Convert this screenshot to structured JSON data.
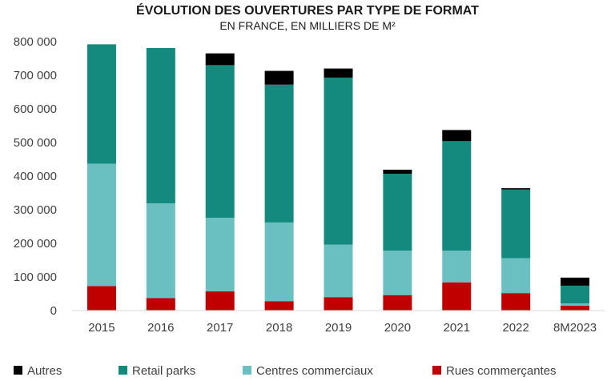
{
  "chart_data": {
    "type": "bar",
    "stacked": true,
    "title": "ÉVOLUTION DES OUVERTURES PAR TYPE DE FORMAT",
    "subtitle": "EN FRANCE, EN MILLIERS DE M²",
    "xlabel": "",
    "ylabel": "",
    "ylim": [
      0,
      800000
    ],
    "yticks": [
      0,
      100000,
      200000,
      300000,
      400000,
      500000,
      600000,
      700000,
      800000
    ],
    "ytick_labels": [
      "0",
      "100 000",
      "200 000",
      "300 000",
      "400 000",
      "500 000",
      "600 000",
      "700 000",
      "800 000"
    ],
    "grid": false,
    "legend_position": "bottom",
    "categories": [
      "2015",
      "2016",
      "2017",
      "2018",
      "2019",
      "2020",
      "2021",
      "2022",
      "8M2023"
    ],
    "series": [
      {
        "name": "Rues commerçantes",
        "color": "#c00000",
        "values": [
          73000,
          37000,
          57000,
          28000,
          40000,
          46000,
          84000,
          52000,
          15000
        ]
      },
      {
        "name": "Centres commerciaux",
        "color": "#6ac0c0",
        "values": [
          364000,
          282000,
          219000,
          234000,
          156000,
          132000,
          94000,
          104000,
          6000
        ]
      },
      {
        "name": "Retail parks",
        "color": "#148a7e",
        "values": [
          355000,
          462000,
          454000,
          410000,
          497000,
          229000,
          326000,
          204000,
          53000
        ]
      },
      {
        "name": "Autres",
        "color": "#000000",
        "values": [
          0,
          0,
          35000,
          41000,
          27000,
          12000,
          33000,
          4000,
          24000
        ]
      }
    ],
    "legend_order": [
      "Autres",
      "Retail parks",
      "Centres commerciaux",
      "Rues commerçantes"
    ]
  }
}
